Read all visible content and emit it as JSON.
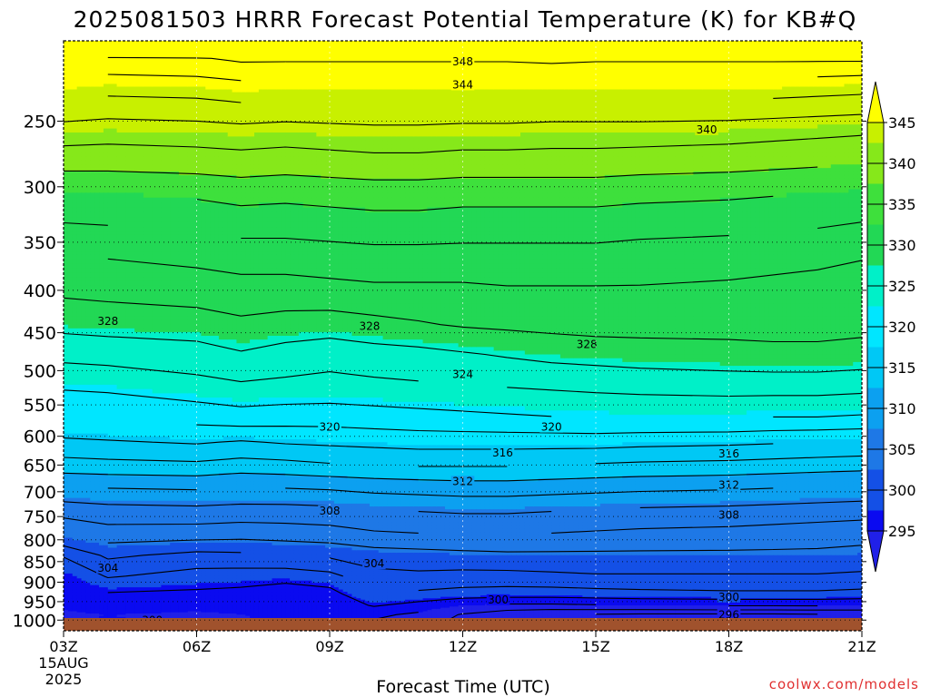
{
  "chart_data": {
    "type": "contour",
    "title": "2025081503 HRRR Forecast Potential Temperature (K) for KB#Q",
    "xlabel": "Forecast Time (UTC)",
    "credit": "coolwx.com/models",
    "x_ticks": [
      "03Z",
      "06Z",
      "09Z",
      "12Z",
      "15Z",
      "18Z",
      "21Z"
    ],
    "x_hours": [
      0,
      3,
      6,
      9,
      12,
      15,
      18
    ],
    "x_date_label": [
      "15AUG",
      "2025"
    ],
    "y_ticks": [
      250,
      300,
      350,
      400,
      450,
      500,
      550,
      600,
      650,
      700,
      750,
      800,
      850,
      900,
      950,
      1000
    ],
    "y_tick_labels": [
      "250",
      "300",
      "350",
      "400",
      "450",
      "500",
      "550",
      "600",
      "650",
      "700",
      "750",
      "800",
      "850",
      "900",
      "950",
      "1000"
    ],
    "y_axis": "pressure (hPa), log scale, inverted",
    "ylim": [
      200,
      1030
    ],
    "ground_color": "#a0522d",
    "grid": "dotted",
    "colorbar": {
      "levels": [
        295,
        300,
        305,
        310,
        315,
        320,
        325,
        330,
        335,
        340,
        345
      ],
      "labels": [
        "295",
        "300",
        "305",
        "310",
        "315",
        "320",
        "325",
        "330",
        "335",
        "340",
        "345"
      ],
      "colors": [
        "#2020e8",
        "#0a0af0",
        "#1450e6",
        "#1e78e6",
        "#0ca0f0",
        "#00c8f5",
        "#00e6ff",
        "#00f0c8",
        "#22d855",
        "#3ee03c",
        "#86e81a",
        "#c8f000",
        "#ffff00"
      ],
      "placement": "right"
    },
    "bands": [
      {
        "t": 0,
        "color": "#2020e8"
      },
      {
        "t": 300,
        "color": "#0a0af0"
      },
      {
        "t": 302.5,
        "color": "#1450e6"
      },
      {
        "t": 307.5,
        "color": "#1e78e6"
      },
      {
        "t": 312.5,
        "color": "#0ca0f0"
      },
      {
        "t": 316,
        "color": "#00c8f5"
      },
      {
        "t": 320.5,
        "color": "#00e6ff"
      },
      {
        "t": 324.5,
        "color": "#00f0c8"
      },
      {
        "t": 328.5,
        "color": "#22d855"
      },
      {
        "t": 336,
        "color": "#3ee03c"
      },
      {
        "t": 338,
        "color": "#86e81a"
      },
      {
        "t": 341,
        "color": "#c8f000"
      },
      {
        "t": 345,
        "color": "#ffff00"
      }
    ],
    "contour_levels": [
      296,
      298,
      300,
      302,
      304,
      306,
      308,
      310,
      312,
      314,
      316,
      318,
      320,
      322,
      324,
      326,
      328,
      330,
      332,
      334,
      336,
      338,
      340,
      342,
      344,
      346,
      348
    ],
    "contour_labels": [
      {
        "text": "348",
        "hour": 9.0,
        "p": 212
      },
      {
        "text": "344",
        "hour": 9.0,
        "p": 226
      },
      {
        "text": "340",
        "hour": 14.5,
        "p": 256
      },
      {
        "text": "328",
        "hour": 1.0,
        "p": 436
      },
      {
        "text": "328",
        "hour": 6.9,
        "p": 442
      },
      {
        "text": "328",
        "hour": 11.8,
        "p": 465
      },
      {
        "text": "324",
        "hour": 9.0,
        "p": 505
      },
      {
        "text": "320",
        "hour": 6.0,
        "p": 585
      },
      {
        "text": "320",
        "hour": 11.0,
        "p": 585
      },
      {
        "text": "316",
        "hour": 9.9,
        "p": 628
      },
      {
        "text": "316",
        "hour": 15.0,
        "p": 630
      },
      {
        "text": "312",
        "hour": 9.0,
        "p": 680
      },
      {
        "text": "312",
        "hour": 15.0,
        "p": 687
      },
      {
        "text": "308",
        "hour": 6.0,
        "p": 738
      },
      {
        "text": "308",
        "hour": 15.0,
        "p": 747
      },
      {
        "text": "304",
        "hour": 1.0,
        "p": 865
      },
      {
        "text": "304",
        "hour": 7.0,
        "p": 855
      },
      {
        "text": "300",
        "hour": 9.8,
        "p": 945
      },
      {
        "text": "300",
        "hour": 15.0,
        "p": 938
      },
      {
        "text": "296",
        "hour": 15.0,
        "p": 985
      },
      {
        "text": "300",
        "hour": 2.0,
        "p": 1000
      }
    ],
    "x": [
      0,
      1,
      3,
      4,
      5,
      6,
      7,
      8,
      9,
      10,
      11,
      12,
      13,
      15,
      16,
      17,
      18
    ],
    "theta": [
      [
        356.0,
        356.0,
        356.0,
        356.0,
        356.0,
        356.0,
        356.0,
        356.0,
        356.0,
        356.0,
        356.0,
        356.0,
        356.0,
        356.0,
        356.0,
        356.0,
        356.0
      ],
      [
        348.0,
        347.6,
        347.8,
        348.4,
        348.4,
        348.4,
        348.4,
        348.4,
        348.4,
        348.4,
        348.6,
        348.4,
        348.4,
        348.4,
        348.4,
        348.4,
        348.4
      ],
      [
        346.0,
        345.6,
        345.8,
        346.2,
        346.0,
        346.0,
        346.0,
        346.0,
        346.0,
        346.0,
        346.2,
        346.0,
        346.0,
        346.0,
        346.0,
        345.8,
        345.6
      ],
      [
        344.0,
        343.6,
        343.8,
        344.2,
        344.0,
        344.0,
        344.0,
        344.0,
        344.0,
        344.0,
        344.0,
        344.0,
        344.0,
        344.0,
        343.8,
        343.6,
        343.4
      ],
      [
        341.0,
        340.8,
        341.0,
        341.2,
        341.0,
        341.2,
        341.4,
        341.4,
        341.2,
        341.2,
        341.0,
        341.0,
        341.0,
        340.8,
        340.6,
        340.4,
        340.2
      ],
      [
        338.6,
        338.6,
        338.8,
        339.0,
        338.8,
        339.0,
        339.2,
        339.2,
        339.0,
        339.0,
        339.0,
        339.0,
        338.8,
        338.6,
        338.4,
        338.2,
        338.0
      ],
      [
        336.0,
        336.0,
        336.4,
        336.8,
        336.6,
        336.8,
        337.0,
        337.0,
        336.8,
        336.8,
        336.8,
        336.8,
        336.6,
        336.4,
        336.2,
        336.0,
        335.8
      ],
      [
        333.4,
        333.6,
        334.0,
        334.4,
        334.4,
        334.6,
        334.8,
        334.8,
        334.6,
        334.6,
        334.6,
        334.6,
        334.4,
        334.2,
        334.0,
        333.8,
        333.4
      ],
      [
        332.0,
        332.2,
        332.6,
        333.0,
        333.0,
        333.2,
        333.4,
        333.4,
        333.4,
        333.4,
        333.4,
        333.4,
        333.2,
        333.0,
        332.8,
        332.6,
        332.2
      ],
      [
        330.4,
        330.6,
        331.0,
        331.2,
        331.2,
        331.4,
        331.6,
        331.6,
        331.6,
        331.8,
        331.8,
        331.8,
        331.8,
        331.6,
        331.4,
        331.2,
        331.0
      ],
      [
        328.6,
        328.8,
        329.0,
        329.6,
        329.2,
        329.0,
        329.4,
        329.8,
        330.2,
        330.4,
        330.6,
        330.8,
        330.8,
        330.8,
        330.8,
        330.8,
        330.6
      ],
      [
        326.6,
        326.8,
        327.2,
        327.8,
        327.2,
        326.8,
        327.2,
        327.4,
        327.8,
        328.2,
        328.6,
        328.8,
        329.0,
        329.2,
        329.4,
        329.4,
        329.2
      ],
      [
        324.4,
        324.6,
        325.4,
        325.8,
        325.6,
        325.4,
        325.6,
        325.8,
        326.0,
        326.2,
        326.4,
        326.6,
        326.8,
        327.0,
        327.0,
        327.0,
        326.8
      ],
      [
        321.8,
        322.0,
        322.6,
        323.0,
        322.8,
        322.8,
        323.0,
        323.2,
        323.4,
        323.6,
        323.8,
        324.0,
        324.0,
        324.0,
        323.8,
        323.8,
        323.6
      ],
      [
        319.6,
        319.8,
        320.2,
        319.8,
        320.2,
        320.4,
        320.6,
        320.8,
        320.8,
        320.8,
        320.8,
        320.8,
        320.6,
        320.4,
        320.2,
        320.0,
        319.8
      ],
      [
        317.2,
        317.4,
        317.6,
        317.2,
        317.4,
        317.8,
        318.0,
        318.2,
        318.2,
        318.2,
        318.0,
        317.8,
        317.6,
        317.4,
        317.2,
        317.0,
        316.8
      ],
      [
        314.0,
        314.2,
        314.4,
        314.0,
        314.2,
        314.4,
        314.8,
        315.0,
        315.2,
        315.2,
        315.0,
        314.8,
        314.6,
        314.4,
        314.2,
        314.0,
        313.8
      ],
      [
        311.0,
        311.4,
        311.6,
        311.4,
        311.4,
        311.6,
        312.0,
        312.2,
        312.4,
        312.4,
        312.2,
        312.0,
        311.8,
        311.6,
        311.4,
        311.2,
        311.0
      ],
      [
        308.0,
        309.0,
        308.8,
        308.6,
        308.8,
        309.0,
        309.6,
        309.8,
        310.0,
        310.0,
        309.8,
        309.6,
        309.4,
        309.2,
        309.0,
        308.8,
        308.6
      ],
      [
        304.2,
        306.4,
        305.4,
        305.6,
        306.0,
        306.4,
        307.0,
        307.2,
        307.4,
        307.6,
        307.6,
        307.6,
        307.6,
        307.6,
        307.6,
        307.6,
        307.4
      ],
      [
        302.0,
        304.2,
        303.2,
        303.0,
        302.8,
        303.4,
        305.4,
        305.6,
        305.4,
        305.4,
        305.6,
        305.8,
        305.8,
        305.8,
        305.8,
        305.8,
        305.6
      ],
      [
        300.8,
        301.8,
        301.6,
        301.4,
        300.8,
        301.2,
        304.0,
        303.6,
        303.2,
        303.0,
        303.0,
        303.2,
        303.4,
        303.6,
        303.6,
        303.6,
        303.4
      ],
      [
        300.2,
        300.6,
        300.4,
        300.4,
        300.4,
        300.6,
        302.2,
        301.2,
        300.0,
        299.6,
        299.6,
        299.8,
        300.0,
        300.2,
        300.2,
        300.2,
        300.0
      ],
      [
        299.8,
        300.0,
        299.8,
        300.0,
        300.2,
        300.4,
        300.4,
        299.6,
        297.8,
        296.6,
        296.0,
        295.8,
        295.6,
        295.6,
        295.6,
        295.8,
        296.0
      ],
      [
        299.8,
        300.2,
        299.6,
        299.8,
        300.2,
        300.2,
        299.6,
        298.4,
        297.6,
        296.8,
        296.2,
        295.8,
        295.6,
        295.4,
        295.4,
        295.6,
        295.8
      ]
    ],
    "p_rows": [
      200,
      210,
      222,
      236,
      258,
      282,
      305,
      340,
      362,
      400,
      440,
      478,
      520,
      572,
      610,
      650,
      690,
      735,
      790,
      835,
      885,
      930,
      960,
      985,
      1012
    ]
  }
}
